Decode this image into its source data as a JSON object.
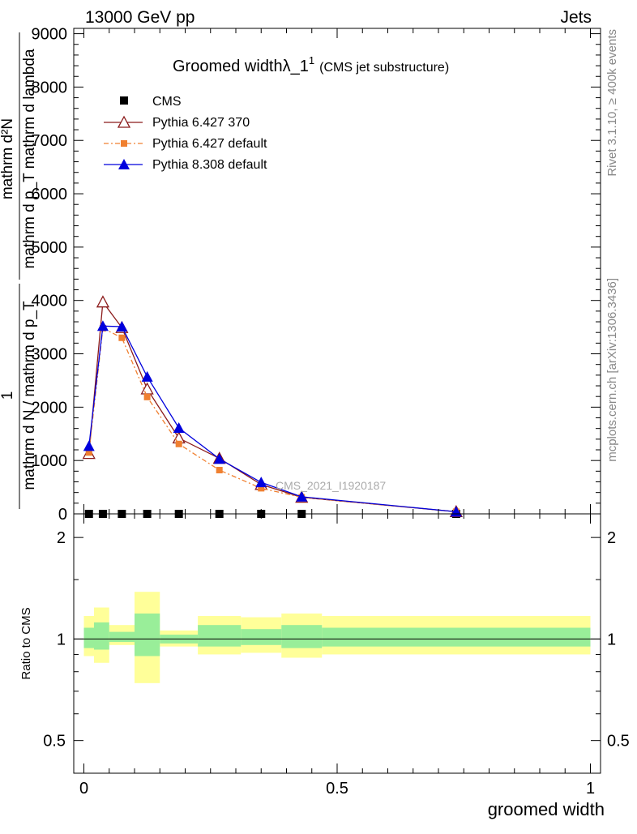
{
  "header": {
    "energy_label": "13000 GeV pp",
    "process_label": "Jets"
  },
  "side_labels": {
    "rivet": "Rivet 3.1.10, ≥ 400k events",
    "mcplots": "mcplots.cern.ch [arXiv:1306.3436]"
  },
  "watermark": "CMS_2021_I1920187",
  "chart_data": [
    {
      "type": "line",
      "title": "Groomed widthλ_1",
      "title_sup": "1",
      "subtitle": "(CMS jet substructure)",
      "xlabel": "groomed width",
      "ylabel_numerator": "mathrm d²N",
      "ylabel_denominator": "mathrm d p_T mathrm d lambda",
      "ylabel_prefix_num": "1",
      "ylabel_prefix_den": "mathrm d N / mathrm d p_T",
      "xlim": [
        -0.02,
        1.02
      ],
      "ylim": [
        0,
        9100
      ],
      "y_ticks": [
        0,
        1000,
        2000,
        3000,
        4000,
        5000,
        6000,
        7000,
        8000,
        9000
      ],
      "y_tick_labels": [
        "0",
        "1000",
        "2000",
        "3000",
        "4000",
        "5000",
        "6000",
        "7000",
        "8000",
        "9000"
      ],
      "legend_position": "top-left",
      "series": [
        {
          "name": "CMS",
          "marker": "square",
          "color": "#000000",
          "x": [
            0.01,
            0.0375,
            0.075,
            0.125,
            0.1875,
            0.2675,
            0.35,
            0.43,
            0.735
          ],
          "y": [
            0,
            0,
            0,
            0,
            0,
            0,
            0,
            0,
            0
          ]
        },
        {
          "name": "Pythia 6.427 370",
          "marker": "open-triangle",
          "color": "#8b1a1a",
          "line": "solid",
          "x": [
            0.01,
            0.0375,
            0.075,
            0.125,
            0.1875,
            0.2675,
            0.35,
            0.43,
            0.735
          ],
          "y": [
            1130,
            3970,
            3490,
            2340,
            1420,
            1040,
            550,
            310,
            40
          ]
        },
        {
          "name": "Pythia 6.427 default",
          "marker": "filled-square",
          "color": "#f08030",
          "line": "dashdot",
          "x": [
            0.01,
            0.0375,
            0.075,
            0.125,
            0.1875,
            0.2675,
            0.35,
            0.43,
            0.735
          ],
          "y": [
            1150,
            3480,
            3300,
            2190,
            1310,
            820,
            480,
            310,
            40
          ]
        },
        {
          "name": "Pythia 8.308 default",
          "marker": "filled-triangle",
          "color": "#0000dd",
          "line": "solid",
          "x": [
            0.01,
            0.0375,
            0.075,
            0.125,
            0.1875,
            0.2675,
            0.35,
            0.43,
            0.735
          ],
          "y": [
            1270,
            3520,
            3510,
            2570,
            1610,
            1030,
            590,
            320,
            40
          ]
        }
      ]
    },
    {
      "type": "area",
      "ylabel": "Ratio to CMS",
      "xlabel": "groomed width",
      "x_ticks": [
        0,
        0.5,
        1
      ],
      "x_tick_labels": [
        "0",
        "0.5",
        "1"
      ],
      "y_ticks": [
        0.5,
        1,
        2
      ],
      "y_tick_labels": [
        "0.5",
        "1",
        "2"
      ],
      "y_scale": "log",
      "ylim": [
        0.4,
        2.35
      ],
      "reference_line": 1,
      "bands": [
        {
          "x0": 0.0,
          "x1": 0.02,
          "yellow": [
            0.89,
            1.17
          ],
          "green": [
            0.94,
            1.08
          ]
        },
        {
          "x0": 0.02,
          "x1": 0.05,
          "yellow": [
            0.85,
            1.24
          ],
          "green": [
            0.93,
            1.12
          ]
        },
        {
          "x0": 0.05,
          "x1": 0.1,
          "yellow": [
            0.96,
            1.1
          ],
          "green": [
            0.98,
            1.05
          ]
        },
        {
          "x0": 0.1,
          "x1": 0.15,
          "yellow": [
            0.74,
            1.38
          ],
          "green": [
            0.89,
            1.19
          ]
        },
        {
          "x0": 0.15,
          "x1": 0.225,
          "yellow": [
            0.95,
            1.06
          ],
          "green": [
            0.97,
            1.03
          ]
        },
        {
          "x0": 0.225,
          "x1": 0.31,
          "yellow": [
            0.9,
            1.17
          ],
          "green": [
            0.95,
            1.1
          ]
        },
        {
          "x0": 0.31,
          "x1": 0.39,
          "yellow": [
            0.91,
            1.16
          ],
          "green": [
            0.96,
            1.07
          ]
        },
        {
          "x0": 0.39,
          "x1": 0.47,
          "yellow": [
            0.88,
            1.19
          ],
          "green": [
            0.94,
            1.1
          ]
        },
        {
          "x0": 0.47,
          "x1": 1.0,
          "yellow": [
            0.9,
            1.17
          ],
          "green": [
            0.95,
            1.08
          ]
        }
      ]
    }
  ]
}
